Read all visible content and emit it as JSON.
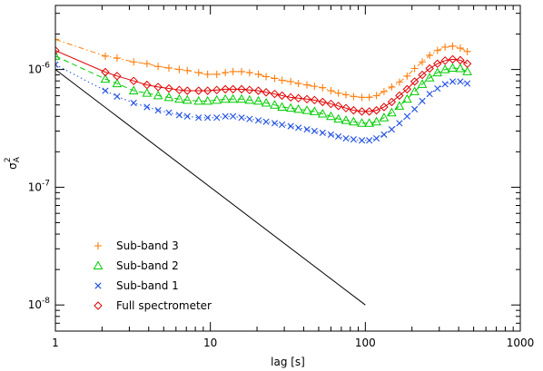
{
  "chart_data": {
    "type": "scatter",
    "title": "",
    "xlabel": "lag [s]",
    "ylabel_main": "σ",
    "ylabel_sub": "A",
    "ylabel_sup": "2",
    "xscale": "log",
    "yscale": "log",
    "xlim": [
      1,
      1000
    ],
    "ylim": [
      6e-09,
      3.5e-06
    ],
    "grid": false,
    "legend_position": "lower-left",
    "x_ticks": [
      {
        "value": 1,
        "label": "1"
      },
      {
        "value": 10,
        "label": "10"
      },
      {
        "value": 100,
        "label": "100"
      },
      {
        "value": 1000,
        "label": "1000"
      }
    ],
    "y_ticks": [
      {
        "value": 1e-08,
        "base": "10",
        "exp": "-8"
      },
      {
        "value": 1e-07,
        "base": "10",
        "exp": "-7"
      },
      {
        "value": 1e-06,
        "base": "10",
        "exp": "-6"
      }
    ],
    "x": [
      1.0,
      1.0,
      2.0,
      3.0,
      4.0,
      5.0,
      6.0,
      7.0,
      8.0,
      9.0,
      10.0,
      11.0,
      12.0,
      13.0,
      14.0,
      15.0,
      16.0,
      17.0,
      18.0,
      19.0,
      20.0,
      21.0,
      22.0,
      23.0,
      24.0,
      25.0,
      26.0,
      27.0,
      28.0,
      29.0,
      30.0,
      31.0,
      32.0,
      33.0,
      34.0,
      35.0,
      36.0,
      37.0,
      38.0,
      39.0,
      40.0,
      41.0,
      42.0,
      43.0,
      44.0,
      45.0
    ],
    "series": [
      {
        "name": "Sub-band 3",
        "color": "#ff7f0e",
        "marker": "plus",
        "line": "dashdot",
        "values_points": [
          [
            1.0,
            1.8e-06
          ],
          [
            2.1,
            1.3e-06
          ],
          [
            2.5,
            1.25e-06
          ],
          [
            3.2,
            1.16e-06
          ],
          [
            3.9,
            1.12e-06
          ],
          [
            4.6,
            1.06e-06
          ],
          [
            5.4,
            1.03e-06
          ],
          [
            6.3,
            1e-06
          ],
          [
            7.1,
            9.8e-07
          ],
          [
            8.4,
            9.4e-07
          ],
          [
            9.6,
            9.1e-07
          ],
          [
            11.0,
            9.1e-07
          ],
          [
            12.5,
            9.4e-07
          ],
          [
            14.0,
            9.6e-07
          ],
          [
            15.9,
            9.6e-07
          ],
          [
            17.9,
            9.4e-07
          ],
          [
            20.4,
            9.1e-07
          ],
          [
            22.9,
            8.7e-07
          ],
          [
            26.0,
            8.4e-07
          ],
          [
            29.0,
            8.1e-07
          ],
          [
            33.0,
            7.9e-07
          ],
          [
            37.0,
            7.6e-07
          ],
          [
            42.0,
            7.4e-07
          ],
          [
            47.0,
            7.2e-07
          ],
          [
            53.0,
            7e-07
          ],
          [
            60.0,
            6.6e-07
          ],
          [
            67.0,
            6.3e-07
          ],
          [
            75.0,
            6.1e-07
          ],
          [
            84.0,
            5.9e-07
          ],
          [
            95.0,
            5.8e-07
          ],
          [
            106.0,
            5.8e-07
          ],
          [
            118.0,
            6e-07
          ],
          [
            132.0,
            6.5e-07
          ],
          [
            148.0,
            7.1e-07
          ],
          [
            166.0,
            7.8e-07
          ],
          [
            186.0,
            8.8e-07
          ],
          [
            208.0,
            1.02e-06
          ],
          [
            233.0,
            1.16e-06
          ],
          [
            260.0,
            1.32e-06
          ],
          [
            292.0,
            1.45e-06
          ],
          [
            327.0,
            1.55e-06
          ],
          [
            366.0,
            1.58e-06
          ],
          [
            410.0,
            1.52e-06
          ],
          [
            455.0,
            1.42e-06
          ]
        ]
      },
      {
        "name": "Sub-band 2",
        "color": "#00cc00",
        "marker": "triangle",
        "line": "dashed",
        "values_points": [
          [
            1.0,
            1.3e-06
          ],
          [
            2.1,
            8.3e-07
          ],
          [
            2.5,
            7.6e-07
          ],
          [
            3.2,
            6.6e-07
          ],
          [
            3.9,
            6.3e-07
          ],
          [
            4.6,
            6e-07
          ],
          [
            5.4,
            5.8e-07
          ],
          [
            6.3,
            5.6e-07
          ],
          [
            7.1,
            5.5e-07
          ],
          [
            8.4,
            5.4e-07
          ],
          [
            9.6,
            5.4e-07
          ],
          [
            11.0,
            5.5e-07
          ],
          [
            12.5,
            5.6e-07
          ],
          [
            14.0,
            5.6e-07
          ],
          [
            15.9,
            5.6e-07
          ],
          [
            17.9,
            5.5e-07
          ],
          [
            20.4,
            5.4e-07
          ],
          [
            22.9,
            5.2e-07
          ],
          [
            26.0,
            5e-07
          ],
          [
            29.0,
            4.8e-07
          ],
          [
            33.0,
            4.7e-07
          ],
          [
            37.0,
            4.6e-07
          ],
          [
            42.0,
            4.5e-07
          ],
          [
            47.0,
            4.4e-07
          ],
          [
            53.0,
            4.2e-07
          ],
          [
            60.0,
            4e-07
          ],
          [
            67.0,
            3.8e-07
          ],
          [
            75.0,
            3.7e-07
          ],
          [
            84.0,
            3.6e-07
          ],
          [
            95.0,
            3.5e-07
          ],
          [
            106.0,
            3.5e-07
          ],
          [
            118.0,
            3.6e-07
          ],
          [
            132.0,
            3.9e-07
          ],
          [
            148.0,
            4.3e-07
          ],
          [
            166.0,
            4.9e-07
          ],
          [
            186.0,
            5.6e-07
          ],
          [
            208.0,
            6.5e-07
          ],
          [
            233.0,
            7.5e-07
          ],
          [
            260.0,
            8.5e-07
          ],
          [
            292.0,
            9.4e-07
          ],
          [
            327.0,
            1e-06
          ],
          [
            366.0,
            1.03e-06
          ],
          [
            410.0,
            1.02e-06
          ],
          [
            455.0,
            9.6e-07
          ]
        ]
      },
      {
        "name": "Sub-band 1",
        "color": "#1f4fe0",
        "marker": "cross",
        "line": "dotted",
        "values_points": [
          [
            1.0,
            1.1e-06
          ],
          [
            2.1,
            6.6e-07
          ],
          [
            2.5,
            5.9e-07
          ],
          [
            3.2,
            5.2e-07
          ],
          [
            3.9,
            4.8e-07
          ],
          [
            4.6,
            4.5e-07
          ],
          [
            5.4,
            4.3e-07
          ],
          [
            6.3,
            4.1e-07
          ],
          [
            7.1,
            4e-07
          ],
          [
            8.4,
            3.9e-07
          ],
          [
            9.6,
            3.9e-07
          ],
          [
            11.0,
            3.9e-07
          ],
          [
            12.5,
            4e-07
          ],
          [
            14.0,
            4e-07
          ],
          [
            15.9,
            3.9e-07
          ],
          [
            17.9,
            3.8e-07
          ],
          [
            20.4,
            3.7e-07
          ],
          [
            22.9,
            3.6e-07
          ],
          [
            26.0,
            3.5e-07
          ],
          [
            29.0,
            3.4e-07
          ],
          [
            33.0,
            3.3e-07
          ],
          [
            37.0,
            3.2e-07
          ],
          [
            42.0,
            3.1e-07
          ],
          [
            47.0,
            3e-07
          ],
          [
            53.0,
            2.9e-07
          ],
          [
            60.0,
            2.8e-07
          ],
          [
            67.0,
            2.7e-07
          ],
          [
            75.0,
            2.6e-07
          ],
          [
            84.0,
            2.55e-07
          ],
          [
            95.0,
            2.5e-07
          ],
          [
            106.0,
            2.5e-07
          ],
          [
            118.0,
            2.6e-07
          ],
          [
            132.0,
            2.8e-07
          ],
          [
            148.0,
            3.1e-07
          ],
          [
            166.0,
            3.5e-07
          ],
          [
            186.0,
            4e-07
          ],
          [
            208.0,
            4.6e-07
          ],
          [
            233.0,
            5.4e-07
          ],
          [
            260.0,
            6.2e-07
          ],
          [
            292.0,
            6.9e-07
          ],
          [
            327.0,
            7.5e-07
          ],
          [
            366.0,
            7.9e-07
          ],
          [
            410.0,
            7.9e-07
          ],
          [
            455.0,
            7.6e-07
          ]
        ]
      },
      {
        "name": "Full spectrometer",
        "color": "#e00000",
        "marker": "diamond",
        "line": "solid",
        "values_points": [
          [
            1.0,
            1.45e-06
          ],
          [
            2.1,
            9.5e-07
          ],
          [
            2.5,
            8.8e-07
          ],
          [
            3.2,
            8e-07
          ],
          [
            3.9,
            7.4e-07
          ],
          [
            4.6,
            7.1e-07
          ],
          [
            5.4,
            6.9e-07
          ],
          [
            6.3,
            6.7e-07
          ],
          [
            7.1,
            6.6e-07
          ],
          [
            8.4,
            6.6e-07
          ],
          [
            9.6,
            6.6e-07
          ],
          [
            11.0,
            6.7e-07
          ],
          [
            12.5,
            6.8e-07
          ],
          [
            14.0,
            6.8e-07
          ],
          [
            15.9,
            6.8e-07
          ],
          [
            17.9,
            6.7e-07
          ],
          [
            20.4,
            6.6e-07
          ],
          [
            22.9,
            6.4e-07
          ],
          [
            26.0,
            6.2e-07
          ],
          [
            29.0,
            6e-07
          ],
          [
            33.0,
            5.8e-07
          ],
          [
            37.0,
            5.7e-07
          ],
          [
            42.0,
            5.6e-07
          ],
          [
            47.0,
            5.5e-07
          ],
          [
            53.0,
            5.3e-07
          ],
          [
            60.0,
            5.1e-07
          ],
          [
            67.0,
            4.9e-07
          ],
          [
            75.0,
            4.7e-07
          ],
          [
            84.0,
            4.5e-07
          ],
          [
            95.0,
            4.4e-07
          ],
          [
            106.0,
            4.4e-07
          ],
          [
            118.0,
            4.5e-07
          ],
          [
            132.0,
            4.8e-07
          ],
          [
            148.0,
            5.3e-07
          ],
          [
            166.0,
            6e-07
          ],
          [
            186.0,
            6.8e-07
          ],
          [
            208.0,
            7.9e-07
          ],
          [
            233.0,
            9e-07
          ],
          [
            260.0,
            1.02e-06
          ],
          [
            292.0,
            1.12e-06
          ],
          [
            327.0,
            1.19e-06
          ],
          [
            366.0,
            1.22e-06
          ],
          [
            410.0,
            1.2e-06
          ],
          [
            455.0,
            1.12e-06
          ]
        ]
      },
      {
        "name": "",
        "color": "#000000",
        "marker": "none",
        "line": "solid",
        "values_points": [
          [
            1.0,
            1e-06
          ],
          [
            100.0,
            1e-08
          ]
        ]
      }
    ]
  }
}
